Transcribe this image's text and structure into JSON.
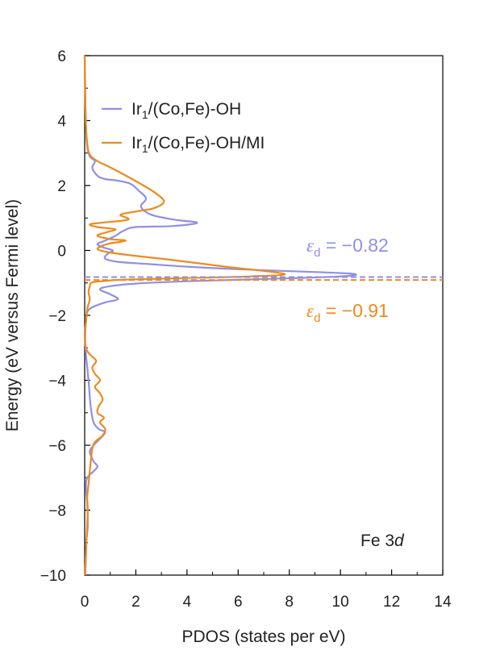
{
  "chart_data": {
    "type": "line",
    "xlabel": "PDOS (states per eV)",
    "ylabel": "Energy (eV versus Fermi level)",
    "xlim": [
      0,
      14
    ],
    "ylim": [
      -10,
      6
    ],
    "xticks": [
      0,
      2,
      4,
      6,
      8,
      10,
      12,
      14
    ],
    "yticks": [
      6,
      4,
      2,
      0,
      -2,
      -4,
      -6,
      -8,
      -10
    ],
    "xtick_labels": [
      "0",
      "2",
      "4",
      "6",
      "8",
      "10",
      "12",
      "14"
    ],
    "ytick_labels": [
      "6",
      "4",
      "2",
      "0",
      "−2",
      "−4",
      "−6",
      "−8",
      "−10"
    ],
    "grid": false,
    "legend_position": "top-left",
    "annotation": {
      "prefix": "Fe 3",
      "suffix": "d"
    },
    "series": [
      {
        "name": "Ir1/(Co,Fe)-OH",
        "legend_main": "Ir",
        "legend_sub": "1",
        "legend_rest": "/(Co,Fe)-OH",
        "color": "#8f8fe8",
        "d_band_center": -0.82,
        "d_band_label": "= −0.82",
        "points": [
          [
            0.0,
            6.0
          ],
          [
            0.02,
            5.0
          ],
          [
            0.05,
            3.8
          ],
          [
            0.1,
            3.2
          ],
          [
            0.2,
            2.9
          ],
          [
            0.4,
            2.75
          ],
          [
            0.3,
            2.55
          ],
          [
            0.5,
            2.3
          ],
          [
            0.8,
            2.2
          ],
          [
            1.3,
            2.15
          ],
          [
            1.8,
            2.05
          ],
          [
            2.1,
            1.85
          ],
          [
            2.4,
            1.6
          ],
          [
            2.2,
            1.35
          ],
          [
            2.6,
            1.1
          ],
          [
            3.5,
            0.95
          ],
          [
            4.4,
            0.85
          ],
          [
            3.4,
            0.75
          ],
          [
            2.0,
            0.72
          ],
          [
            1.5,
            0.6
          ],
          [
            1.2,
            0.45
          ],
          [
            0.8,
            0.3
          ],
          [
            0.5,
            0.2
          ],
          [
            0.7,
            0.1
          ],
          [
            1.1,
            0.0
          ],
          [
            0.9,
            -0.1
          ],
          [
            0.8,
            -0.25
          ],
          [
            1.3,
            -0.35
          ],
          [
            2.5,
            -0.42
          ],
          [
            4.0,
            -0.5
          ],
          [
            6.0,
            -0.58
          ],
          [
            8.5,
            -0.65
          ],
          [
            10.5,
            -0.72
          ],
          [
            10.0,
            -0.8
          ],
          [
            7.0,
            -0.88
          ],
          [
            4.0,
            -0.95
          ],
          [
            2.0,
            -1.02
          ],
          [
            1.0,
            -1.1
          ],
          [
            0.6,
            -1.2
          ],
          [
            1.0,
            -1.35
          ],
          [
            1.3,
            -1.5
          ],
          [
            0.8,
            -1.6
          ],
          [
            0.3,
            -1.75
          ],
          [
            0.1,
            -1.9
          ],
          [
            0.05,
            -2.2
          ],
          [
            0.02,
            -2.7
          ],
          [
            0.05,
            -3.2
          ],
          [
            0.1,
            -3.6
          ],
          [
            0.15,
            -4.0
          ],
          [
            0.2,
            -4.5
          ],
          [
            0.25,
            -4.9
          ],
          [
            0.35,
            -5.3
          ],
          [
            0.55,
            -5.5
          ],
          [
            0.8,
            -5.6
          ],
          [
            0.6,
            -5.8
          ],
          [
            0.35,
            -6.0
          ],
          [
            0.2,
            -6.2
          ],
          [
            0.35,
            -6.5
          ],
          [
            0.5,
            -6.65
          ],
          [
            0.35,
            -6.8
          ],
          [
            0.1,
            -7.0
          ],
          [
            0.05,
            -7.3
          ],
          [
            0.1,
            -7.8
          ],
          [
            0.12,
            -8.5
          ],
          [
            0.06,
            -9.0
          ],
          [
            0.02,
            -10.0
          ]
        ]
      },
      {
        "name": "Ir1/(Co,Fe)-OH/MI",
        "legend_main": "Ir",
        "legend_sub": "1",
        "legend_rest": "/(Co,Fe)-OH/MI",
        "color": "#ee8a1b",
        "d_band_center": -0.91,
        "d_band_label": "= −0.91",
        "points": [
          [
            0.0,
            6.0
          ],
          [
            0.02,
            5.0
          ],
          [
            0.04,
            4.0
          ],
          [
            0.1,
            3.3
          ],
          [
            0.2,
            2.95
          ],
          [
            0.5,
            2.75
          ],
          [
            0.9,
            2.6
          ],
          [
            1.5,
            2.35
          ],
          [
            2.3,
            2.0
          ],
          [
            2.8,
            1.75
          ],
          [
            3.1,
            1.5
          ],
          [
            2.7,
            1.3
          ],
          [
            2.0,
            1.2
          ],
          [
            1.4,
            1.1
          ],
          [
            1.7,
            0.95
          ],
          [
            0.6,
            0.85
          ],
          [
            0.2,
            0.8
          ],
          [
            0.5,
            0.72
          ],
          [
            1.2,
            0.65
          ],
          [
            0.8,
            0.55
          ],
          [
            0.5,
            0.45
          ],
          [
            1.0,
            0.35
          ],
          [
            1.6,
            0.3
          ],
          [
            0.9,
            0.2
          ],
          [
            0.5,
            0.05
          ],
          [
            0.9,
            -0.05
          ],
          [
            1.8,
            -0.15
          ],
          [
            3.5,
            -0.3
          ],
          [
            5.5,
            -0.5
          ],
          [
            7.8,
            -0.72
          ],
          [
            6.5,
            -0.8
          ],
          [
            4.0,
            -0.85
          ],
          [
            1.5,
            -0.9
          ],
          [
            0.5,
            -0.96
          ],
          [
            0.25,
            -1.0
          ],
          [
            0.2,
            -1.1
          ],
          [
            0.15,
            -1.3
          ],
          [
            0.2,
            -1.5
          ],
          [
            0.1,
            -1.8
          ],
          [
            0.05,
            -2.2
          ],
          [
            0.0,
            -2.6
          ],
          [
            0.05,
            -3.0
          ],
          [
            0.2,
            -3.2
          ],
          [
            0.45,
            -3.4
          ],
          [
            0.3,
            -3.6
          ],
          [
            0.4,
            -3.8
          ],
          [
            0.6,
            -4.0
          ],
          [
            0.4,
            -4.2
          ],
          [
            0.6,
            -4.4
          ],
          [
            0.7,
            -4.6
          ],
          [
            0.55,
            -4.8
          ],
          [
            0.5,
            -5.0
          ],
          [
            0.75,
            -5.15
          ],
          [
            0.6,
            -5.3
          ],
          [
            0.8,
            -5.5
          ],
          [
            0.7,
            -5.7
          ],
          [
            0.4,
            -5.9
          ],
          [
            0.3,
            -6.1
          ],
          [
            0.25,
            -6.4
          ],
          [
            0.2,
            -6.8
          ],
          [
            0.15,
            -7.2
          ],
          [
            0.1,
            -7.6
          ],
          [
            0.12,
            -8.0
          ],
          [
            0.08,
            -8.8
          ],
          [
            0.05,
            -9.4
          ],
          [
            0.02,
            -10.0
          ]
        ]
      }
    ]
  }
}
